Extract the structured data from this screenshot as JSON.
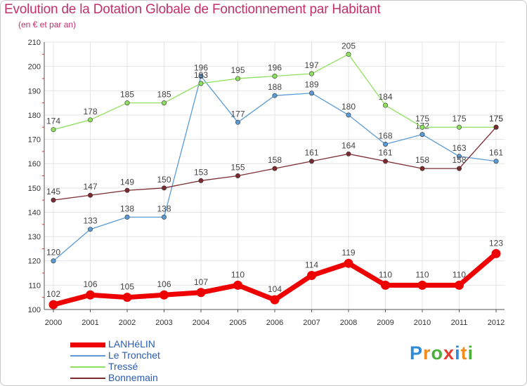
{
  "header": {
    "title": "Evolution de la Dotation Globale de Fonctionnement par Habitant",
    "subtitle": "(en € et par an)"
  },
  "logo": {
    "text": "Proxiti",
    "letters": [
      "P",
      "r",
      "o",
      "x",
      "i",
      "t",
      "i"
    ],
    "colors": [
      "#2e8bd8",
      "#f28c1e",
      "#4dae3c",
      "#e53a2f",
      "#2e8bd8",
      "#f28c1e",
      "#4dae3c"
    ]
  },
  "chart_data": {
    "type": "line",
    "title": "Evolution de la Dotation Globale de Fonctionnement par Habitant",
    "subtitle": "(en € et par an)",
    "x": [
      "2000",
      "2001",
      "2002",
      "2003",
      "2004",
      "2005",
      "2006",
      "2007",
      "2008",
      "2009",
      "2010",
      "2011",
      "2012"
    ],
    "ylim": [
      100,
      210
    ],
    "yticks": [
      100,
      110,
      120,
      130,
      140,
      150,
      160,
      170,
      180,
      190,
      200,
      210
    ],
    "grid": true,
    "legend_position": "bottom-left",
    "series": [
      {
        "name": "LANHéLIN",
        "color": "#ee0000",
        "emphasis": true,
        "values": [
          102,
          106,
          105,
          106,
          107,
          110,
          104,
          114,
          119,
          110,
          110,
          110,
          123
        ]
      },
      {
        "name": "Le Tronchet",
        "color": "#5b9bd5",
        "values": [
          120,
          133,
          138,
          138,
          196,
          177,
          188,
          189,
          180,
          168,
          172,
          163,
          161
        ]
      },
      {
        "name": "Tressé",
        "color": "#8fe060",
        "values": [
          174,
          178,
          185,
          185,
          193,
          195,
          196,
          197,
          205,
          184,
          175,
          175,
          175
        ]
      },
      {
        "name": "Bonnemain",
        "color": "#7b2a30",
        "values": [
          145,
          147,
          149,
          150,
          153,
          155,
          158,
          161,
          164,
          161,
          158,
          158,
          175
        ]
      }
    ]
  }
}
